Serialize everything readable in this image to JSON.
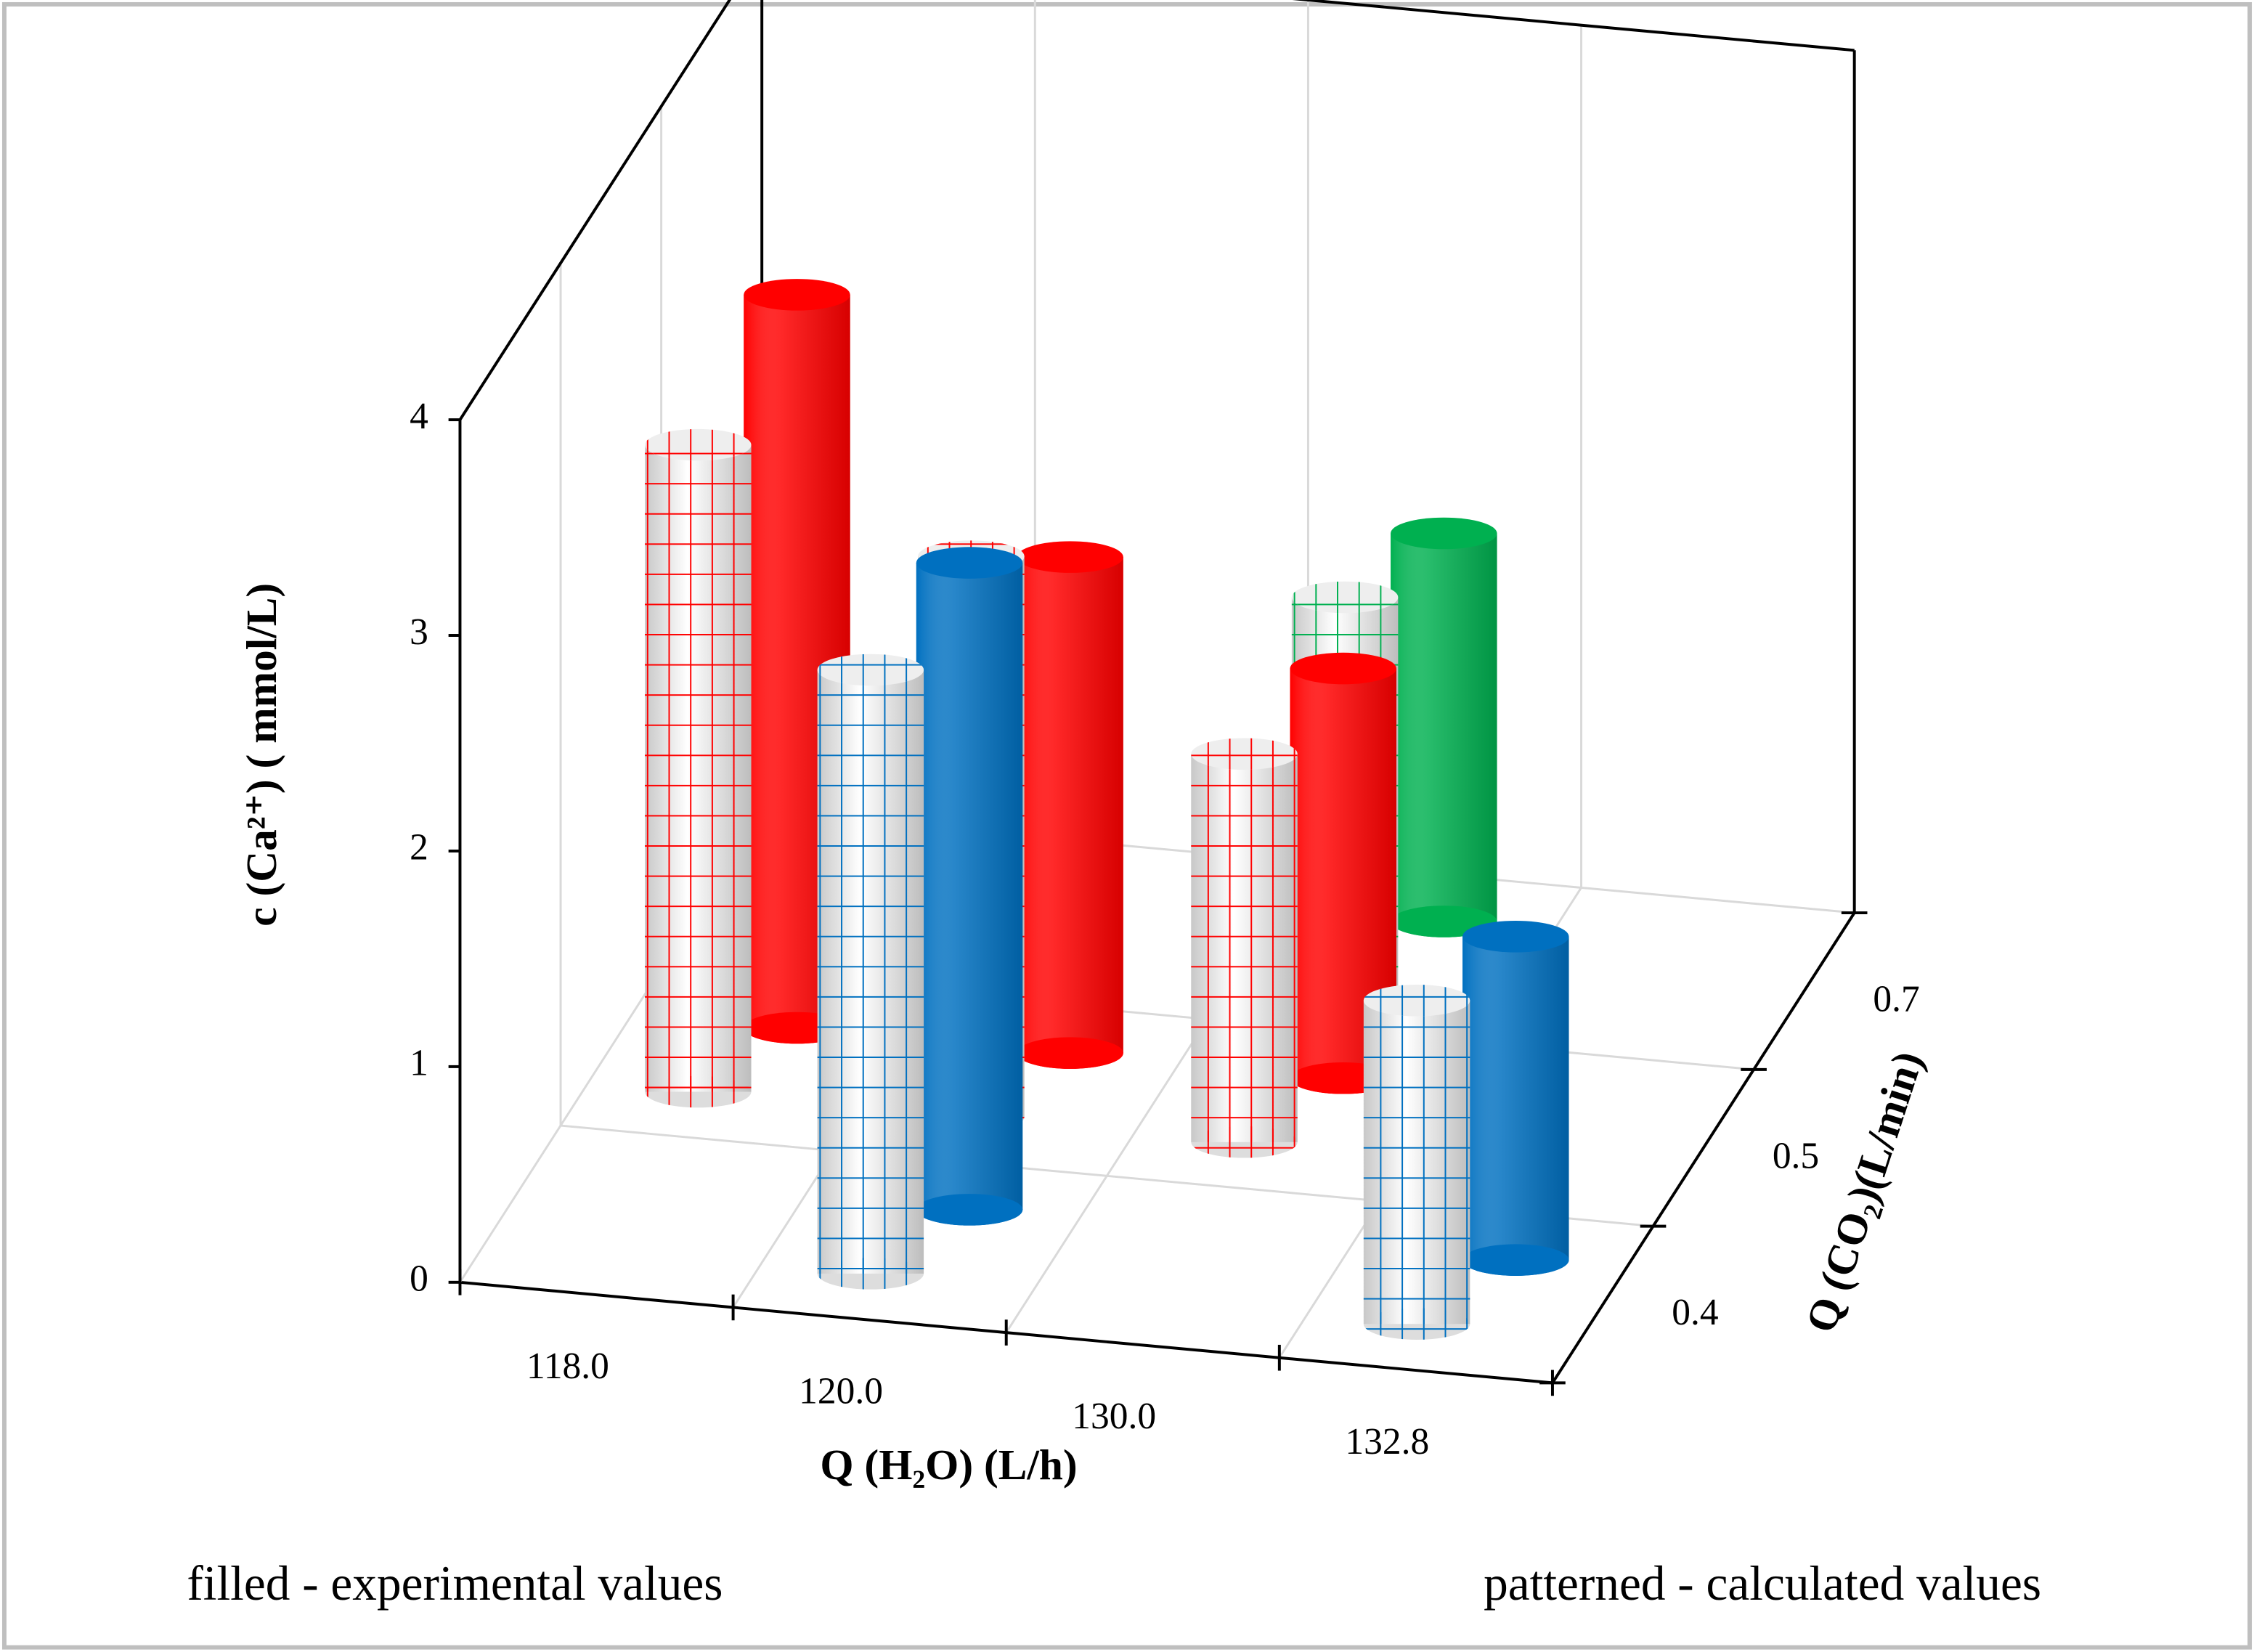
{
  "chart_data": {
    "type": "cylinder3d",
    "xlabel": "Q (H₂O) (L/h)",
    "ylabel": "c (Ca²⁺) ( mmol/L)",
    "zlabel": "Q (CO₂)(L/min)",
    "categories": [
      "118.0",
      "120.0",
      "130.0",
      "132.8"
    ],
    "depth_categories": [
      "0.4",
      "0.5",
      "0.7"
    ],
    "ylim": [
      0,
      4
    ],
    "yticks": [
      0,
      1,
      2,
      3,
      4
    ],
    "rows": [
      {
        "color": "#0070c0",
        "experimental": [
          null,
          3.0,
          null,
          1.5
        ],
        "calculated": [
          null,
          2.8,
          null,
          1.5
        ]
      },
      {
        "color": "#ff0000",
        "experimental": [
          3.4,
          2.3,
          1.9,
          null
        ],
        "calculated": [
          3.0,
          2.6,
          1.8,
          null
        ]
      },
      {
        "color": "#00b050",
        "experimental": [
          null,
          null,
          1.8,
          null
        ],
        "calculated": [
          null,
          null,
          1.8,
          null
        ]
      }
    ],
    "annotations": [
      "filled - experimental values",
      "patterned - calculated values"
    ]
  }
}
